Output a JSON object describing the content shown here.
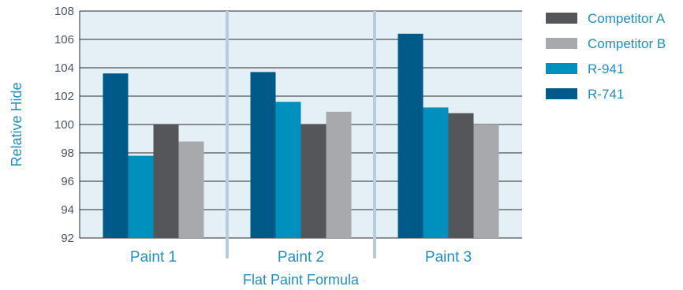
{
  "chart_data": {
    "type": "bar",
    "xlabel": "Flat Paint Formula",
    "ylabel": "Relative Hide",
    "ylim": [
      92,
      108
    ],
    "yticks": [
      92,
      94,
      96,
      98,
      100,
      102,
      104,
      106,
      108
    ],
    "grid": true,
    "legend_position": "right",
    "categories": [
      "Paint 1",
      "Paint 2",
      "Paint 3"
    ],
    "series": [
      {
        "name": "R-741",
        "color": "#005a87",
        "values": [
          103.6,
          103.7,
          106.4
        ]
      },
      {
        "name": "R-941",
        "color": "#0090be",
        "values": [
          97.8,
          101.6,
          101.2
        ]
      },
      {
        "name": "Competitor A",
        "color": "#545659",
        "values": [
          100.0,
          100.0,
          100.8
        ]
      },
      {
        "name": "Competitor B",
        "color": "#a7a9ac",
        "values": [
          98.8,
          100.9,
          100.0
        ]
      }
    ],
    "legend_order": [
      "Competitor A",
      "Competitor B",
      "R-941",
      "R-741"
    ],
    "colors": {
      "plot_background": "#e4f0f6",
      "separator": "#b8cde0",
      "text_accent": "#1f8fc0"
    }
  }
}
